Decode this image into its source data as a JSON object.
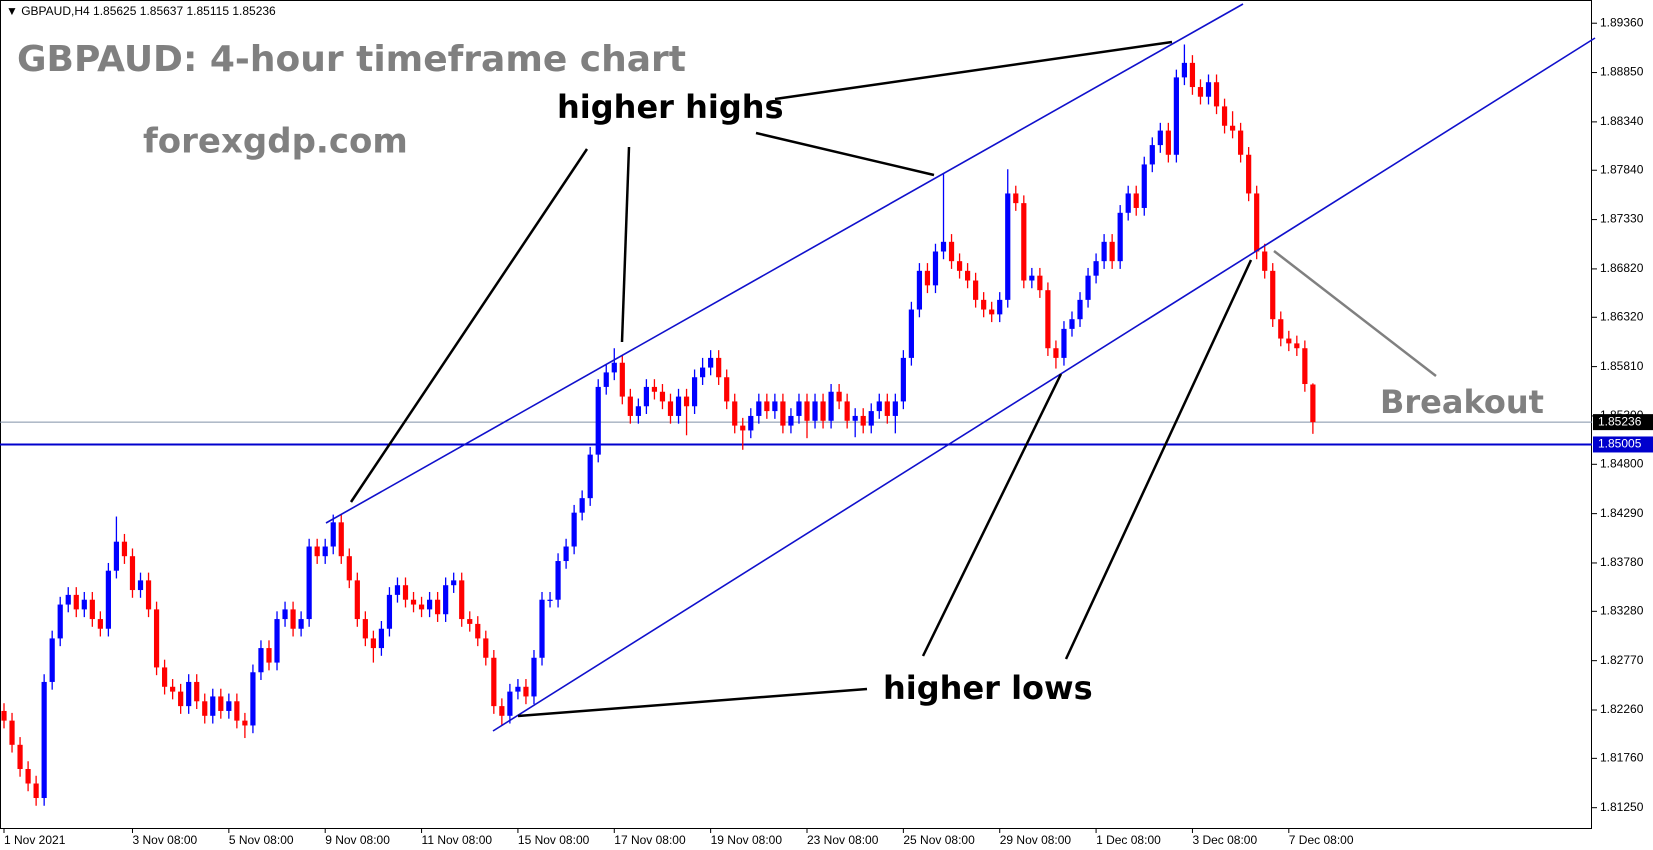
{
  "chart_data": {
    "type": "candlestick",
    "symbol": "GBPAUD,H4",
    "title": "GBPAUD: 4-hour timeframe chart",
    "subtitle": "forexgdp.com",
    "annotations": [
      "higher highs",
      "higher lows",
      "Breakout"
    ],
    "up_color": "#0000ff",
    "down_color": "#ff0000",
    "categories": [
      "1 Nov 2021",
      null,
      null,
      null,
      null,
      null,
      null,
      null,
      null,
      null,
      null,
      null,
      null,
      null,
      null,
      null,
      "3 Nov 08:00",
      null,
      null,
      null,
      null,
      null,
      null,
      null,
      null,
      null,
      null,
      null,
      "5 Nov 08:00",
      null,
      null,
      null,
      null,
      null,
      null,
      null,
      null,
      null,
      null,
      null,
      "9 Nov 08:00",
      null,
      null,
      null,
      null,
      null,
      null,
      null,
      null,
      null,
      null,
      null,
      "11 Nov 08:00",
      null,
      null,
      null,
      null,
      null,
      null,
      null,
      null,
      null,
      null,
      null,
      "15 Nov 08:00",
      null,
      null,
      null,
      null,
      null,
      null,
      null,
      null,
      null,
      null,
      null,
      "17 Nov 08:00",
      null,
      null,
      null,
      null,
      null,
      null,
      null,
      null,
      null,
      null,
      null,
      "19 Nov 08:00",
      null,
      null,
      null,
      null,
      null,
      null,
      null,
      null,
      null,
      null,
      null,
      "23 Nov 08:00",
      null,
      null,
      null,
      null,
      null,
      null,
      null,
      null,
      null,
      null,
      null,
      "25 Nov 08:00",
      null,
      null,
      null,
      null,
      null,
      null,
      null,
      null,
      null,
      null,
      null,
      "29 Nov 08:00",
      null,
      null,
      null,
      null,
      null,
      null,
      null,
      null,
      null,
      null,
      null,
      "1 Dec 08:00",
      null,
      null,
      null,
      null,
      null,
      null,
      null,
      null,
      null,
      null,
      null,
      "3 Dec 08:00",
      null,
      null,
      null,
      null,
      null,
      null,
      null,
      null,
      null,
      null,
      null,
      "7 Dec 08:00",
      null,
      null,
      null
    ],
    "open": [
      1.8225,
      1.8215,
      1.819,
      1.8165,
      1.815,
      1.8135,
      1.8255,
      1.83,
      1.8335,
      1.8345,
      1.833,
      1.834,
      1.832,
      1.831,
      1.837,
      1.84,
      1.8385,
      1.835,
      1.836,
      1.833,
      1.827,
      1.825,
      1.8245,
      1.823,
      1.8255,
      1.8235,
      1.822,
      1.824,
      1.8225,
      1.8235,
      1.8215,
      1.821,
      1.8265,
      1.829,
      1.8275,
      1.832,
      1.833,
      1.831,
      1.832,
      1.8395,
      1.8385,
      1.8395,
      1.842,
      1.8385,
      1.836,
      1.832,
      1.83,
      1.829,
      1.831,
      1.8345,
      1.8355,
      1.834,
      1.8335,
      1.833,
      1.834,
      1.8325,
      1.8355,
      1.836,
      1.832,
      1.8315,
      1.83,
      1.828,
      1.823,
      1.822,
      1.8245,
      1.825,
      1.824,
      1.828,
      1.834,
      1.834,
      1.838,
      1.8395,
      1.843,
      1.8445,
      1.849,
      1.856,
      1.8575,
      1.8585,
      1.855,
      1.853,
      1.854,
      1.856,
      1.8555,
      1.8545,
      1.853,
      1.855,
      1.854,
      1.857,
      1.858,
      1.859,
      1.857,
      1.8545,
      1.852,
      1.8515,
      1.853,
      1.8545,
      1.8535,
      1.8545,
      1.852,
      1.853,
      1.8545,
      1.8525,
      1.8545,
      1.8525,
      1.8555,
      1.8545,
      1.8525,
      1.853,
      1.852,
      1.8535,
      1.8545,
      1.853,
      1.8545,
      1.859,
      1.864,
      1.868,
      1.8665,
      1.87,
      1.871,
      1.869,
      1.868,
      1.867,
      1.865,
      1.864,
      1.8635,
      1.865,
      1.876,
      1.875,
      1.867,
      1.8675,
      1.866,
      1.86,
      1.859,
      1.862,
      1.863,
      1.865,
      1.8675,
      1.869,
      1.871,
      1.869,
      1.874,
      1.876,
      1.8745,
      1.879,
      1.881,
      1.8825,
      1.88,
      1.888,
      1.8895,
      1.887,
      1.886,
      1.8875,
      1.885,
      1.883,
      1.8825,
      1.88,
      1.876,
      1.87,
      1.868,
      1.863,
      1.861,
      1.8605,
      1.86,
      1.85625
    ],
    "high": [
      1.8233,
      1.8223,
      1.8198,
      1.8173,
      1.8158,
      1.8263,
      1.8308,
      1.8343,
      1.8353,
      1.8353,
      1.8348,
      1.8348,
      1.8328,
      1.8378,
      1.8426,
      1.8408,
      1.8393,
      1.8368,
      1.8368,
      1.8338,
      1.8278,
      1.8258,
      1.8253,
      1.8263,
      1.8263,
      1.8243,
      1.8248,
      1.8248,
      1.8243,
      1.8243,
      1.8223,
      1.8273,
      1.8298,
      1.8298,
      1.8328,
      1.8338,
      1.8338,
      1.8328,
      1.8403,
      1.8403,
      1.8403,
      1.8428,
      1.8428,
      1.8393,
      1.8368,
      1.8328,
      1.8308,
      1.8318,
      1.8353,
      1.8363,
      1.8363,
      1.8348,
      1.8343,
      1.8348,
      1.8348,
      1.8363,
      1.8368,
      1.8368,
      1.8328,
      1.8323,
      1.8308,
      1.8288,
      1.8238,
      1.8253,
      1.8258,
      1.8258,
      1.8288,
      1.8348,
      1.8348,
      1.8388,
      1.8403,
      1.8438,
      1.8453,
      1.8498,
      1.8568,
      1.8583,
      1.86,
      1.8593,
      1.8558,
      1.8548,
      1.8568,
      1.8568,
      1.8563,
      1.8553,
      1.8558,
      1.8558,
      1.8578,
      1.859,
      1.8598,
      1.8598,
      1.8578,
      1.8553,
      1.8528,
      1.8538,
      1.8553,
      1.8553,
      1.8553,
      1.8553,
      1.8538,
      1.8553,
      1.8553,
      1.8553,
      1.8553,
      1.8563,
      1.8563,
      1.8553,
      1.8538,
      1.8538,
      1.8543,
      1.8553,
      1.8553,
      1.8553,
      1.8598,
      1.8648,
      1.8688,
      1.8688,
      1.8708,
      1.878,
      1.8718,
      1.8698,
      1.8688,
      1.8678,
      1.8658,
      1.8648,
      1.8658,
      1.8785,
      1.8768,
      1.8758,
      1.8683,
      1.8683,
      1.8668,
      1.8608,
      1.8628,
      1.8638,
      1.8658,
      1.8683,
      1.8698,
      1.8718,
      1.8718,
      1.8748,
      1.8768,
      1.8768,
      1.8798,
      1.8818,
      1.8833,
      1.8833,
      1.8888,
      1.8914,
      1.8903,
      1.8878,
      1.8883,
      1.8883,
      1.8858,
      1.8845,
      1.8833,
      1.8808,
      1.8768,
      1.8708,
      1.8688,
      1.8638,
      1.8618,
      1.8613,
      1.8608,
      1.85637
    ],
    "low": [
      1.8207,
      1.8182,
      1.8157,
      1.8142,
      1.8127,
      1.8127,
      1.8247,
      1.8292,
      1.8327,
      1.8322,
      1.8322,
      1.8312,
      1.8302,
      1.8302,
      1.8362,
      1.8377,
      1.8342,
      1.8342,
      1.8322,
      1.8262,
      1.8242,
      1.8237,
      1.8222,
      1.8222,
      1.8227,
      1.8212,
      1.8212,
      1.8217,
      1.8217,
      1.8207,
      1.8197,
      1.8202,
      1.8257,
      1.8267,
      1.8267,
      1.8312,
      1.8302,
      1.8302,
      1.8312,
      1.8377,
      1.8377,
      1.8387,
      1.8377,
      1.8352,
      1.8312,
      1.8292,
      1.8275,
      1.8282,
      1.8302,
      1.8337,
      1.8332,
      1.8327,
      1.8322,
      1.8322,
      1.8317,
      1.8317,
      1.8347,
      1.8312,
      1.8307,
      1.8292,
      1.8272,
      1.8222,
      1.821,
      1.8212,
      1.8237,
      1.8232,
      1.8232,
      1.8272,
      1.8332,
      1.8332,
      1.8372,
      1.8387,
      1.8422,
      1.8437,
      1.8482,
      1.8552,
      1.8567,
      1.8542,
      1.8522,
      1.8522,
      1.8532,
      1.8547,
      1.8537,
      1.8522,
      1.8522,
      1.851,
      1.8532,
      1.8562,
      1.8572,
      1.8562,
      1.8537,
      1.8512,
      1.8495,
      1.8507,
      1.8522,
      1.8527,
      1.8527,
      1.8512,
      1.8512,
      1.8522,
      1.8507,
      1.8517,
      1.8517,
      1.8517,
      1.8537,
      1.8517,
      1.8508,
      1.8512,
      1.8512,
      1.8527,
      1.8522,
      1.8512,
      1.8537,
      1.8582,
      1.8632,
      1.8657,
      1.8657,
      1.8692,
      1.8682,
      1.8672,
      1.8662,
      1.8642,
      1.8632,
      1.8627,
      1.8627,
      1.8642,
      1.8742,
      1.8662,
      1.8662,
      1.8652,
      1.8592,
      1.8579,
      1.8582,
      1.8612,
      1.8622,
      1.8642,
      1.8667,
      1.8682,
      1.8682,
      1.8682,
      1.8732,
      1.8737,
      1.8737,
      1.8782,
      1.8802,
      1.8792,
      1.8792,
      1.8872,
      1.8862,
      1.8852,
      1.8852,
      1.8842,
      1.8822,
      1.8817,
      1.8792,
      1.8752,
      1.8692,
      1.8672,
      1.8622,
      1.8602,
      1.8597,
      1.8592,
      1.8555,
      1.85115
    ],
    "close": [
      1.8215,
      1.819,
      1.8165,
      1.815,
      1.8135,
      1.8255,
      1.83,
      1.8335,
      1.8345,
      1.833,
      1.834,
      1.832,
      1.831,
      1.837,
      1.84,
      1.8385,
      1.835,
      1.836,
      1.833,
      1.827,
      1.825,
      1.8245,
      1.823,
      1.8255,
      1.8235,
      1.822,
      1.824,
      1.8225,
      1.8235,
      1.8215,
      1.821,
      1.8265,
      1.829,
      1.8275,
      1.832,
      1.833,
      1.831,
      1.832,
      1.8395,
      1.8385,
      1.8395,
      1.842,
      1.8385,
      1.836,
      1.832,
      1.83,
      1.829,
      1.831,
      1.8345,
      1.8355,
      1.834,
      1.8335,
      1.833,
      1.834,
      1.8325,
      1.8355,
      1.836,
      1.832,
      1.8315,
      1.83,
      1.828,
      1.823,
      1.822,
      1.8245,
      1.825,
      1.824,
      1.828,
      1.834,
      1.834,
      1.838,
      1.8395,
      1.843,
      1.8445,
      1.849,
      1.856,
      1.8575,
      1.8585,
      1.855,
      1.853,
      1.854,
      1.856,
      1.8555,
      1.8545,
      1.853,
      1.855,
      1.854,
      1.857,
      1.858,
      1.859,
      1.857,
      1.8545,
      1.852,
      1.8515,
      1.853,
      1.8545,
      1.8535,
      1.8545,
      1.852,
      1.853,
      1.8545,
      1.8525,
      1.8545,
      1.8525,
      1.8555,
      1.8545,
      1.8525,
      1.853,
      1.852,
      1.8535,
      1.8545,
      1.853,
      1.8545,
      1.859,
      1.864,
      1.868,
      1.8665,
      1.87,
      1.871,
      1.869,
      1.868,
      1.867,
      1.865,
      1.864,
      1.8635,
      1.865,
      1.876,
      1.875,
      1.867,
      1.8675,
      1.866,
      1.86,
      1.859,
      1.862,
      1.863,
      1.865,
      1.8675,
      1.869,
      1.871,
      1.869,
      1.874,
      1.876,
      1.8745,
      1.879,
      1.881,
      1.8825,
      1.88,
      1.888,
      1.8895,
      1.887,
      1.886,
      1.8875,
      1.885,
      1.883,
      1.8825,
      1.88,
      1.876,
      1.87,
      1.868,
      1.863,
      1.861,
      1.8605,
      1.86,
      1.8563,
      1.85236
    ],
    "ylim": [
      1.8104,
      1.896
    ],
    "yticks": [
      {
        "value": 1.8125,
        "label": "1.81250"
      },
      {
        "value": 1.8176,
        "label": "1.81760"
      },
      {
        "value": 1.8226,
        "label": "1.82260"
      },
      {
        "value": 1.8277,
        "label": "1.82770"
      },
      {
        "value": 1.8328,
        "label": "1.83280"
      },
      {
        "value": 1.8378,
        "label": "1.83780"
      },
      {
        "value": 1.8429,
        "label": "1.84290"
      },
      {
        "value": 1.848,
        "label": "1.84800"
      },
      {
        "value": 1.853,
        "label": "1.85300"
      },
      {
        "value": 1.8581,
        "label": "1.85810"
      },
      {
        "value": 1.8632,
        "label": "1.86320"
      },
      {
        "value": 1.8682,
        "label": "1.86820"
      },
      {
        "value": 1.8733,
        "label": "1.87330"
      },
      {
        "value": 1.8784,
        "label": "1.87840"
      },
      {
        "value": 1.8834,
        "label": "1.88340"
      },
      {
        "value": 1.8885,
        "label": "1.88850"
      },
      {
        "value": 1.8936,
        "label": "1.89360"
      }
    ],
    "hlines": [
      {
        "value": 1.85005,
        "color": "#0000cd"
      }
    ],
    "grid": false
  }
}
